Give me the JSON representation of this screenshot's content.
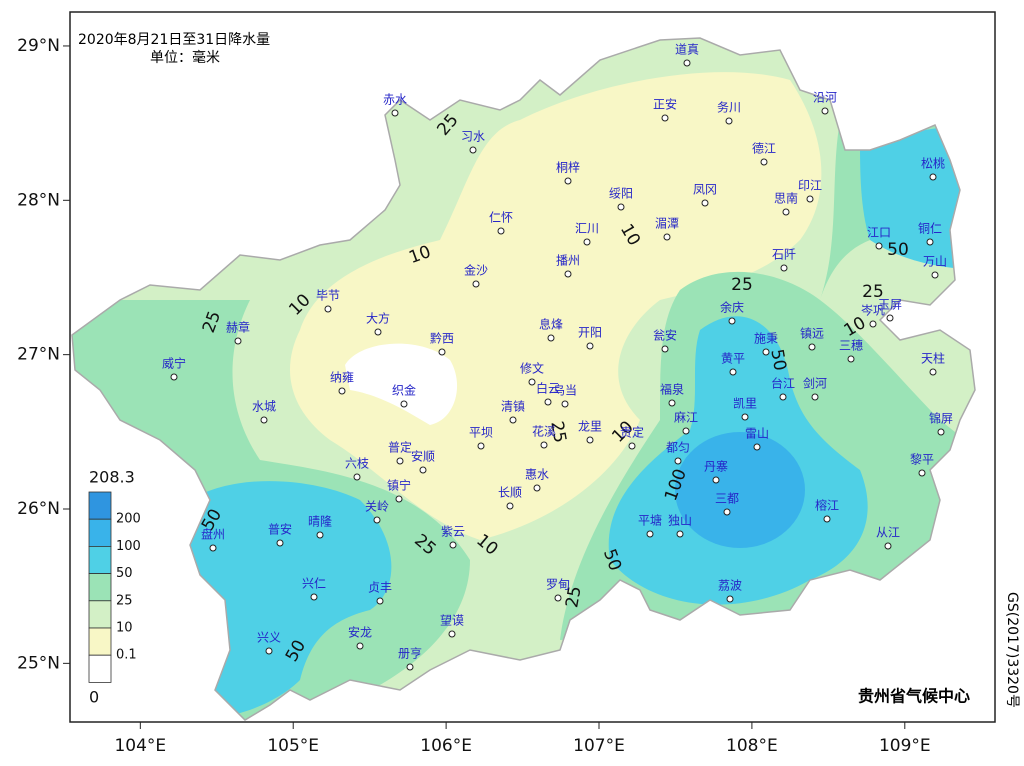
{
  "map": {
    "title": "2020年8月21日至31日降水量",
    "unit": "单位：毫米",
    "credit": "贵州省气候中心",
    "approval": "GS(2017)3320号",
    "xlim": [
      103.54,
      109.59
    ],
    "ylim": [
      24.62,
      29.22
    ],
    "xticks": [
      {
        "value": 104,
        "label": "104°E"
      },
      {
        "value": 105,
        "label": "105°E"
      },
      {
        "value": 106,
        "label": "106°E"
      },
      {
        "value": 107,
        "label": "107°E"
      },
      {
        "value": 108,
        "label": "108°E"
      },
      {
        "value": 109,
        "label": "109°E"
      }
    ],
    "yticks": [
      {
        "value": 25,
        "label": "25°N"
      },
      {
        "value": 26,
        "label": "26°N"
      },
      {
        "value": 27,
        "label": "27°N"
      },
      {
        "value": 28,
        "label": "28°N"
      },
      {
        "value": 29,
        "label": "29°N"
      }
    ],
    "legend": {
      "max": 208.3,
      "min": 0,
      "levels": [
        200,
        100,
        50,
        25,
        10,
        0.1
      ],
      "colors": [
        "#2f95e0",
        "#39b3ea",
        "#4fd0e6",
        "#9be3b6",
        "#d3f0c6",
        "#f8f7c6",
        "#ffffff"
      ]
    },
    "contour_labels": [
      25,
      10,
      10,
      10,
      25,
      25,
      50,
      25,
      10,
      50,
      25,
      10,
      100,
      50,
      25,
      10,
      50,
      25,
      50
    ],
    "stations": [
      "赤水",
      "习水",
      "道真",
      "正安",
      "务川",
      "沿河",
      "桐梓",
      "德江",
      "绥阳",
      "凤冈",
      "印江",
      "思南",
      "松桃",
      "仁怀",
      "汇川",
      "湄潭",
      "江口",
      "铜仁",
      "金沙",
      "播州",
      "石阡",
      "万山",
      "毕节",
      "赫章",
      "大方",
      "黔西",
      "息烽",
      "开阳",
      "瓮安",
      "余庆",
      "施秉",
      "镇远",
      "岑巩",
      "玉屏",
      "三穗",
      "天柱",
      "威宁",
      "纳雍",
      "织金",
      "修文",
      "白云",
      "乌当",
      "黄平",
      "台江",
      "剑河",
      "水城",
      "清镇",
      "花溪",
      "龙里",
      "贵定",
      "福泉",
      "麻江",
      "凯里",
      "雷山",
      "锦屏",
      "平坝",
      "普定",
      "安顺",
      "六枝",
      "都匀",
      "丹寨",
      "黎平",
      "镇宁",
      "惠水",
      "长顺",
      "关岭",
      "三都",
      "榕江",
      "盘州",
      "普安",
      "晴隆",
      "紫云",
      "平塘",
      "独山",
      "从江",
      "兴仁",
      "贞丰",
      "罗甸",
      "荔波",
      "兴义",
      "安龙",
      "望谟",
      "册亨"
    ]
  }
}
